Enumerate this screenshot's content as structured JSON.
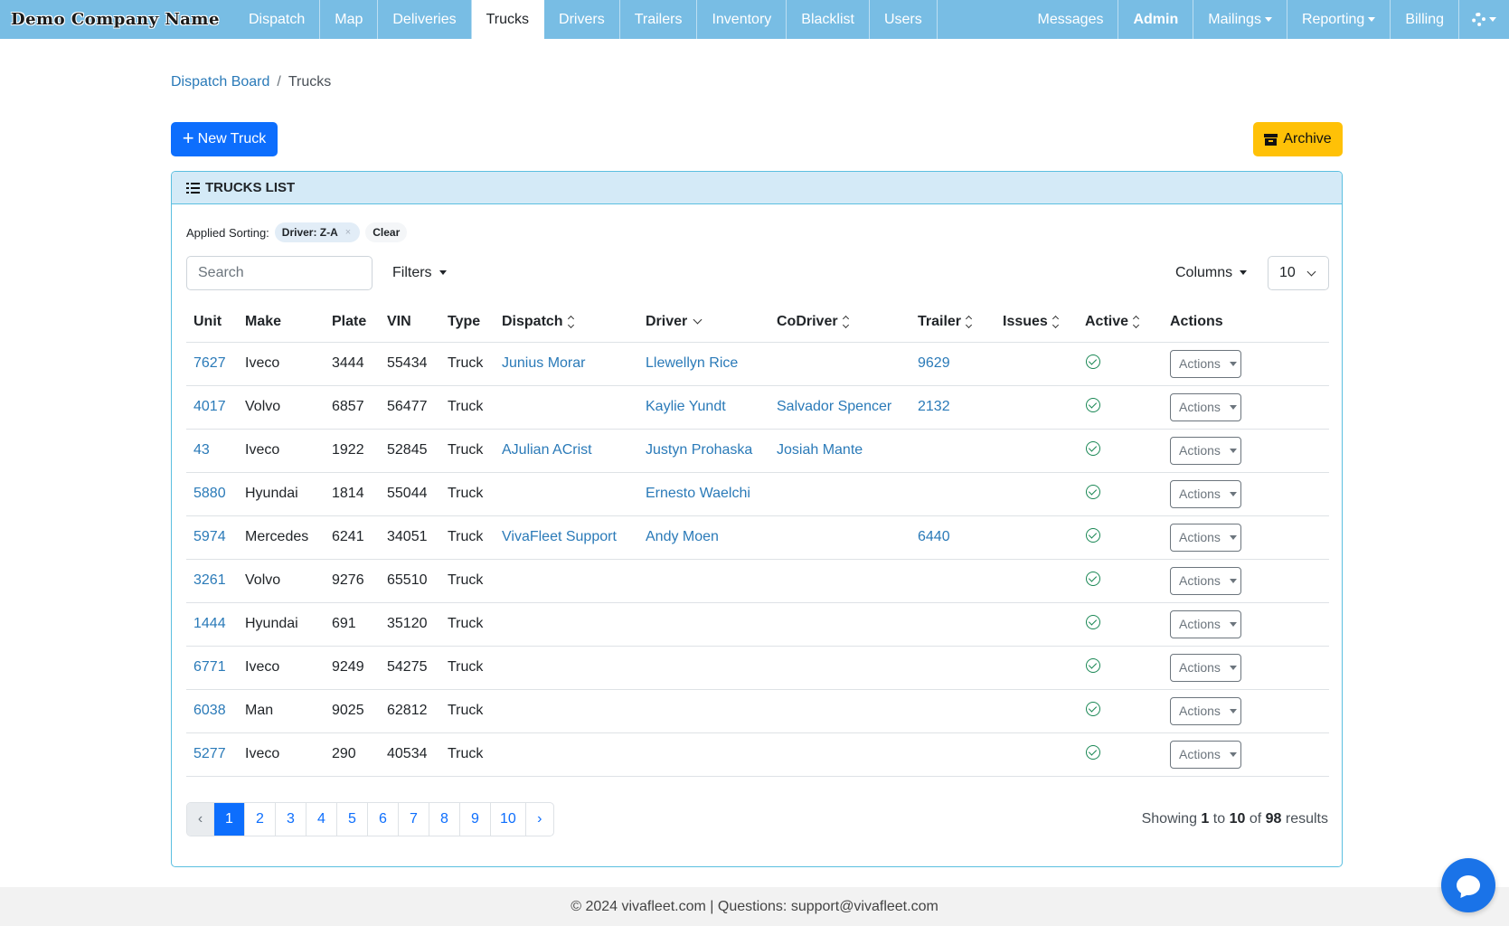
{
  "brand": "Demo Company Name",
  "nav": {
    "left": [
      {
        "label": "Dispatch",
        "name": "nav-dispatch"
      },
      {
        "label": "Map",
        "name": "nav-map"
      },
      {
        "label": "Deliveries",
        "name": "nav-deliveries"
      },
      {
        "label": "Trucks",
        "name": "nav-trucks",
        "active": true
      },
      {
        "label": "Drivers",
        "name": "nav-drivers"
      },
      {
        "label": "Trailers",
        "name": "nav-trailers"
      },
      {
        "label": "Inventory",
        "name": "nav-inventory"
      },
      {
        "label": "Blacklist",
        "name": "nav-blacklist"
      },
      {
        "label": "Users",
        "name": "nav-users"
      }
    ],
    "right": [
      {
        "label": "Messages",
        "name": "nav-messages"
      },
      {
        "label": "Admin",
        "name": "nav-admin",
        "bold": true
      },
      {
        "label": "Mailings",
        "name": "nav-mailings",
        "dropdown": true
      },
      {
        "label": "Reporting",
        "name": "nav-reporting",
        "dropdown": true
      },
      {
        "label": "Billing",
        "name": "nav-billing"
      }
    ],
    "settings_icon": "gear-icon"
  },
  "breadcrumb": {
    "parent": "Dispatch Board",
    "separator": "/",
    "current": "Trucks"
  },
  "buttons": {
    "new_truck": "New Truck",
    "archive": "Archive"
  },
  "card": {
    "title": "TRUCKS LIST"
  },
  "sorting": {
    "label": "Applied Sorting:",
    "chip": "Driver: Z-A",
    "chip_remove": "×",
    "clear": "Clear"
  },
  "search": {
    "placeholder": "Search"
  },
  "filters_label": "Filters",
  "columns_label": "Columns",
  "per_page": "10",
  "table": {
    "headers": [
      "Unit",
      "Make",
      "Plate",
      "VIN",
      "Type",
      "Dispatch",
      "Driver",
      "CoDriver",
      "Trailer",
      "Issues",
      "Active",
      "Actions"
    ],
    "sortable": {
      "Dispatch": "both",
      "Driver": "desc",
      "CoDriver": "both",
      "Trailer": "both",
      "Issues": "both",
      "Active": "both"
    },
    "action_label": "Actions",
    "rows": [
      {
        "unit": "7627",
        "make": "Iveco",
        "plate": "3444",
        "vin": "55434",
        "type": "Truck",
        "dispatch": "Junius Morar",
        "driver": "Llewellyn Rice",
        "codriver": "",
        "trailer": "9629",
        "issues": ""
      },
      {
        "unit": "4017",
        "make": "Volvo",
        "plate": "6857",
        "vin": "56477",
        "type": "Truck",
        "dispatch": "",
        "driver": "Kaylie Yundt",
        "codriver": "Salvador Spencer",
        "trailer": "2132",
        "issues": ""
      },
      {
        "unit": "43",
        "make": "Iveco",
        "plate": "1922",
        "vin": "52845",
        "type": "Truck",
        "dispatch": "AJulian ACrist",
        "driver": "Justyn Prohaska",
        "codriver": "Josiah Mante",
        "trailer": "",
        "issues": ""
      },
      {
        "unit": "5880",
        "make": "Hyundai",
        "plate": "1814",
        "vin": "55044",
        "type": "Truck",
        "dispatch": "",
        "driver": "Ernesto Waelchi",
        "codriver": "",
        "trailer": "",
        "issues": ""
      },
      {
        "unit": "5974",
        "make": "Mercedes",
        "plate": "6241",
        "vin": "34051",
        "type": "Truck",
        "dispatch": "VivaFleet Support",
        "driver": "Andy Moen",
        "codriver": "",
        "trailer": "6440",
        "issues": ""
      },
      {
        "unit": "3261",
        "make": "Volvo",
        "plate": "9276",
        "vin": "65510",
        "type": "Truck",
        "dispatch": "",
        "driver": "",
        "codriver": "",
        "trailer": "",
        "issues": ""
      },
      {
        "unit": "1444",
        "make": "Hyundai",
        "plate": "691",
        "vin": "35120",
        "type": "Truck",
        "dispatch": "",
        "driver": "",
        "codriver": "",
        "trailer": "",
        "issues": ""
      },
      {
        "unit": "6771",
        "make": "Iveco",
        "plate": "9249",
        "vin": "54275",
        "type": "Truck",
        "dispatch": "",
        "driver": "",
        "codriver": "",
        "trailer": "",
        "issues": ""
      },
      {
        "unit": "6038",
        "make": "Man",
        "plate": "9025",
        "vin": "62812",
        "type": "Truck",
        "dispatch": "",
        "driver": "",
        "codriver": "",
        "trailer": "",
        "issues": ""
      },
      {
        "unit": "5277",
        "make": "Iveco",
        "plate": "290",
        "vin": "40534",
        "type": "Truck",
        "dispatch": "",
        "driver": "",
        "codriver": "",
        "trailer": "",
        "issues": ""
      }
    ]
  },
  "pagination": {
    "prev": "‹",
    "next": "›",
    "pages": [
      "1",
      "2",
      "3",
      "4",
      "5",
      "6",
      "7",
      "8",
      "9",
      "10"
    ],
    "current": "1"
  },
  "summary": {
    "prefix": "Showing",
    "from": "1",
    "to_word": "to",
    "to": "10",
    "of_word": "of",
    "total": "98",
    "suffix": "results"
  },
  "footer": "© 2024 vivafleet.com | Questions: support@vivafleet.com",
  "colors": {
    "navbar": "#78bde4",
    "primary": "#0d6efd",
    "archive": "#ffc107",
    "link": "#2a7ab8",
    "active_check": "#198754",
    "card_border": "#5bbfe0"
  }
}
